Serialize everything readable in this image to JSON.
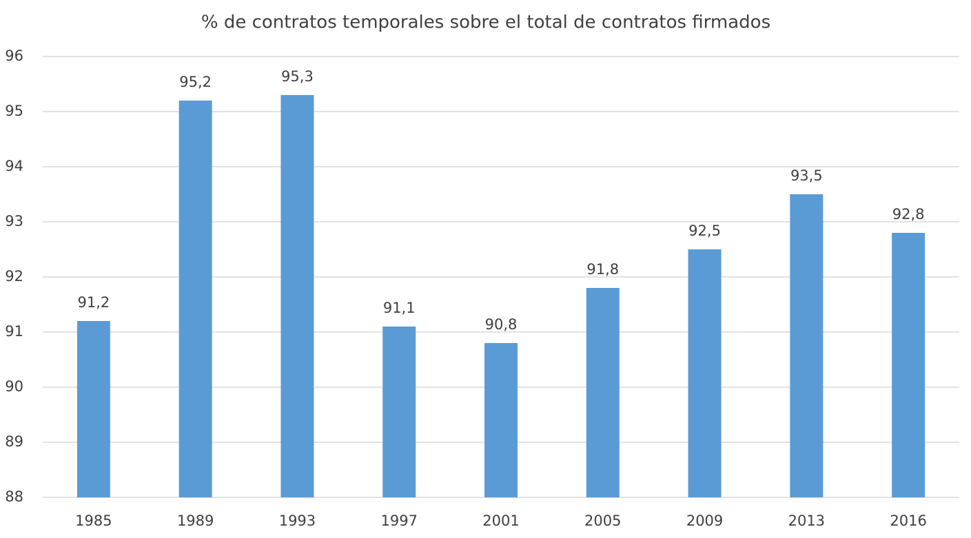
{
  "chart_data": {
    "type": "bar",
    "title": "% de contratos temporales sobre el total de contratos firmados",
    "categories": [
      "1985",
      "1989",
      "1993",
      "1997",
      "2001",
      "2005",
      "2009",
      "2013",
      "2016"
    ],
    "values": [
      91.2,
      95.2,
      95.3,
      91.1,
      90.8,
      91.8,
      92.5,
      93.5,
      92.8
    ],
    "value_labels": [
      "91,2",
      "95,2",
      "95,3",
      "91,1",
      "90,8",
      "91,8",
      "92,5",
      "93,5",
      "92,8"
    ],
    "color": "#5b9bd5",
    "ylim": [
      88,
      96
    ],
    "yticks": [
      88,
      89,
      90,
      91,
      92,
      93,
      94,
      95,
      96
    ],
    "grid": true
  }
}
